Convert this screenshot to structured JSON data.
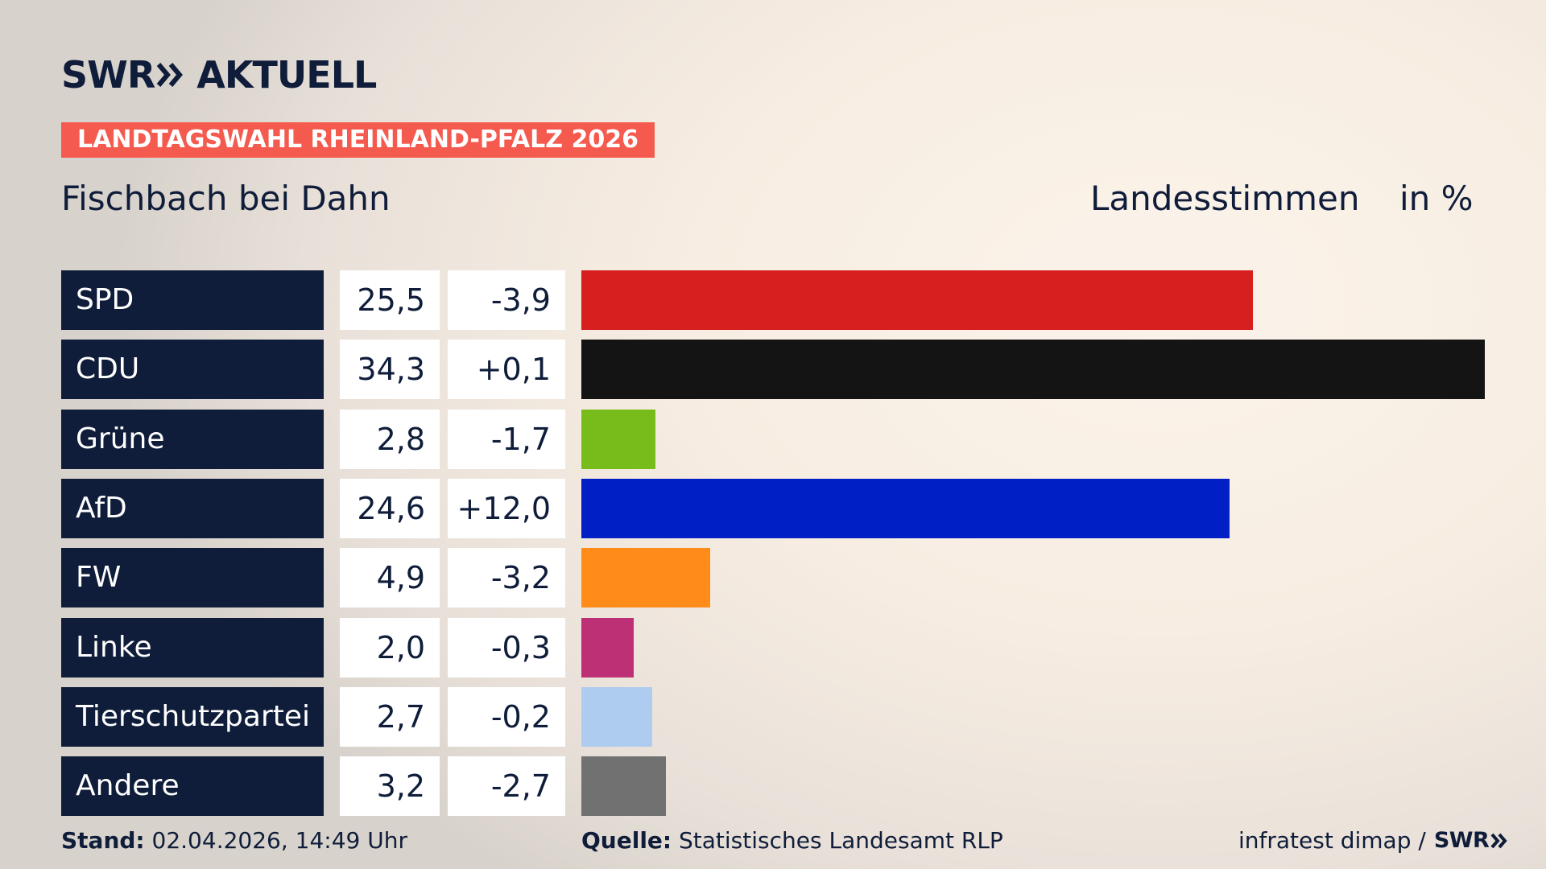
{
  "header": {
    "logo_swr": "SWR",
    "logo_aktuell": "AKTUELL",
    "badge": "LANDTAGSWAHL RHEINLAND-PFALZ 2026",
    "place": "Fischbach bei Dahn",
    "measure": "Landesstimmen",
    "unit": "in %"
  },
  "colors": {
    "navy": "#0f1d3a",
    "badge": "#f55a4e"
  },
  "chart_data": {
    "type": "bar",
    "orientation": "horizontal",
    "xlim": [
      0,
      34.3
    ],
    "categories": [
      "SPD",
      "CDU",
      "Grüne",
      "AfD",
      "FW",
      "Linke",
      "Tierschutzpartei",
      "Andere"
    ],
    "values": [
      25.5,
      34.3,
      2.8,
      24.6,
      4.9,
      2.0,
      2.7,
      3.2
    ],
    "value_labels": [
      "25,5",
      "34,3",
      "2,8",
      "24,6",
      "4,9",
      "2,0",
      "2,7",
      "3,2"
    ],
    "diff_labels": [
      "-3,9",
      "+0,1",
      "-1,7",
      "+12,0",
      "-3,2",
      "-0,3",
      "-0,2",
      "-2,7"
    ],
    "bar_colors": [
      "#d71f20",
      "#141414",
      "#78bc1b",
      "#0020c6",
      "#ff8c19",
      "#be3075",
      "#aecbf0",
      "#717171"
    ]
  },
  "footer": {
    "stand_label": "Stand:",
    "stand_value": "02.04.2026, 14:49 Uhr",
    "quelle_label": "Quelle:",
    "quelle_value": "Statistisches Landesamt RLP",
    "credit": "infratest dimap /",
    "credit_swr": "SWR"
  }
}
